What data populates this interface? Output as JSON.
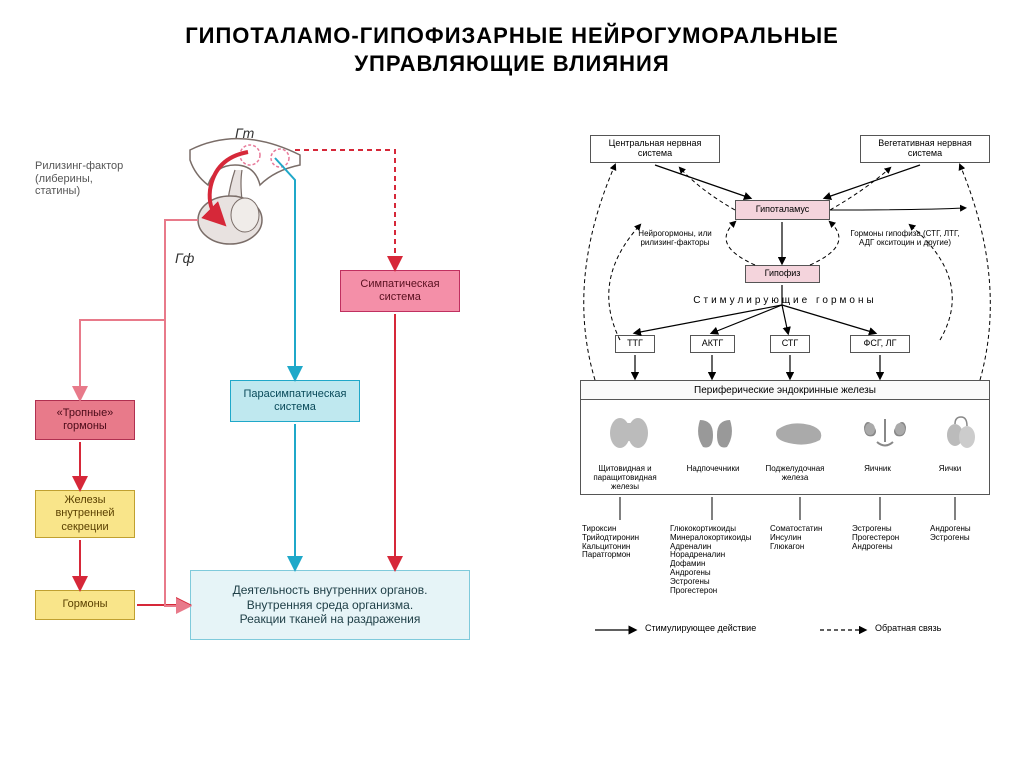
{
  "title_line1": "ГИПОТАЛАМО-ГИПОФИЗАРНЫЕ НЕЙРОГУМОРАЛЬНЫЕ",
  "title_line2": "УПРАВЛЯЮЩИЕ ВЛИЯНИЯ",
  "left": {
    "gt_label": "Гт",
    "gf_label": "Гф",
    "releasing": {
      "line1": "Рилизинг-фактор",
      "line2": "(либерины,",
      "line3": "статины)"
    },
    "boxes": {
      "sympathetic": "Симпатическая система",
      "parasympathetic": "Парасимпатическая система",
      "tropic": "«Тропные» гормоны",
      "glands": "Железы внутренней секреции",
      "hormones": "Гормоны",
      "activity": {
        "line1": "Деятельность внутренних органов.",
        "line2": "Внутренняя среда организма.",
        "line3": "Реакции тканей на раздражения"
      }
    },
    "colors": {
      "sympathetic_bg": "#f48fa8",
      "sympathetic_border": "#c03060",
      "parasympathetic_bg": "#bfe8ef",
      "parasympathetic_border": "#1fa8c9",
      "tropic_bg": "#e87a8a",
      "tropic_border": "#b03050",
      "glands_bg": "#f9e58a",
      "glands_border": "#c0a030",
      "hormones_bg": "#f9e58a",
      "hormones_border": "#c0a030",
      "activity_bg": "#e6f4f7",
      "activity_border": "#7fcadb",
      "red_arrow": "#d62839",
      "cyan_arrow": "#1fa8c9",
      "pink_arrow": "#e87a8a",
      "pituitary_fill": "#e8e2e0",
      "pituitary_stroke": "#7a6d68"
    }
  },
  "right": {
    "cns": "Центральная нервная система",
    "ans": "Вегетативная нервная система",
    "hypothalamus": "Гипоталамус",
    "pituitary": "Гипофиз",
    "neurohormones": "Нейрогормоны, или рилизинг-факторы",
    "pituitary_hormones": "Гормоны гипофиза (СТГ, ЛТГ, АДГ окситоцин и другие)",
    "stimulating": "Стимулирующие гормоны",
    "tth": "ТТГ",
    "acth": "АКТГ",
    "sth": "СТГ",
    "fsh_lh": "ФСГ, ЛГ",
    "peripheral": "Периферические эндокринные железы",
    "organs": {
      "thyroid": "Щитовидная и паращитовидная железы",
      "adrenal": "Надпочечники",
      "pancreas": "Поджелудочная железа",
      "ovary": "Яичник",
      "testes": "Яички"
    },
    "secretions": {
      "thyroid": [
        "Тироксин",
        "Трийодтиронин",
        "Кальцитонин",
        "Паратгормон"
      ],
      "adrenal": [
        "Глюкокортикоиды",
        "Минералокортикоиды",
        "Адреналин",
        "Норадреналин",
        "Дофамин",
        "Андрогены",
        "Эстрогены",
        "Прогестерон"
      ],
      "pancreas": [
        "Соматостатин",
        "Инсулин",
        "Глюкагон"
      ],
      "ovary": [
        "Эстрогены",
        "Прогестерон",
        "Андрогены"
      ],
      "testes": [
        "Андрогены",
        "Эстрогены"
      ]
    },
    "legend": {
      "stim": "Стимулирующее действие",
      "feedback": "Обратная связь"
    },
    "colors": {
      "box_border": "#555555",
      "arrow": "#000000",
      "pink_band": "#f4d4dc",
      "band_bg": "#f5f5f5"
    }
  }
}
